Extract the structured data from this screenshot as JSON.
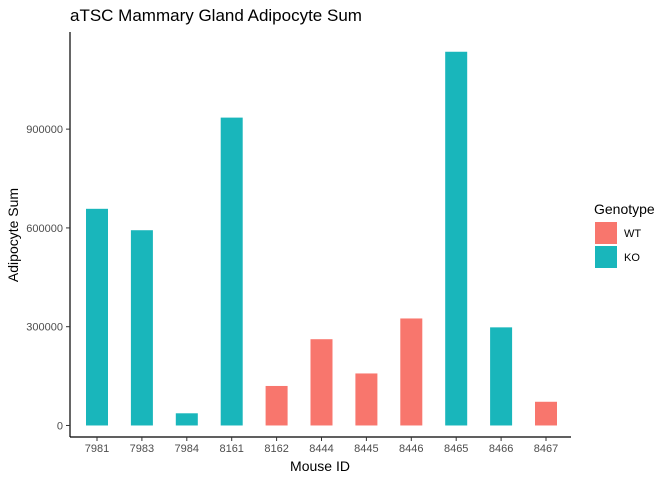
{
  "chart_data": {
    "type": "bar",
    "title": "aTSC Mammary Gland Adipocyte Sum",
    "xlabel": "Mouse ID",
    "ylabel": "Adipocyte Sum",
    "categories": [
      "7981",
      "7983",
      "7984",
      "8161",
      "8162",
      "8444",
      "8445",
      "8446",
      "8465",
      "8466",
      "8467"
    ],
    "values": [
      658000,
      593000,
      37000,
      935000,
      120000,
      262000,
      158000,
      325000,
      1135000,
      298000,
      72000
    ],
    "genotype": [
      "KO",
      "KO",
      "KO",
      "KO",
      "WT",
      "WT",
      "WT",
      "WT",
      "KO",
      "KO",
      "WT"
    ],
    "ylim": [
      -35000,
      1195000
    ],
    "yticks": [
      0,
      300000,
      600000,
      900000
    ],
    "ytick_labels": [
      "0",
      "300000",
      "600000",
      "900000"
    ],
    "grid": false,
    "legend": {
      "title": "Genotype",
      "position": "right",
      "entries": [
        {
          "label": "WT",
          "color": "#F8766D"
        },
        {
          "label": "KO",
          "color": "#19B6BB"
        }
      ]
    }
  }
}
